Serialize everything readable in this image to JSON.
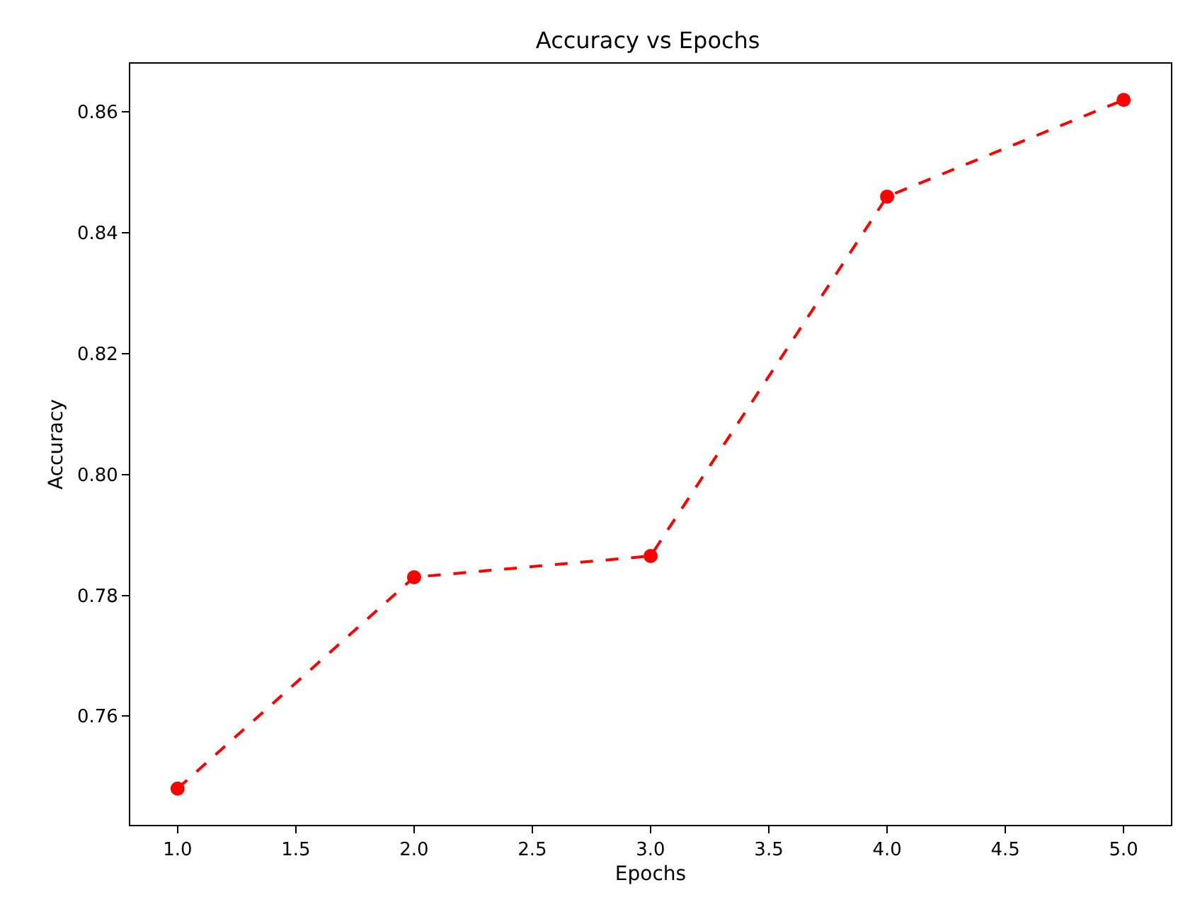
{
  "chart_data": {
    "type": "line",
    "title": "Accuracy vs Epochs",
    "xlabel": "Epochs",
    "ylabel": "Accuracy",
    "x": [
      1,
      2,
      3,
      4,
      5
    ],
    "series": [
      {
        "color": "#ff0000",
        "values": [
          0.748,
          0.783,
          0.7865,
          0.846,
          0.862
        ]
      }
    ],
    "xlim": [
      0.8,
      5.2
    ],
    "xticks": [
      {
        "value": 1,
        "label": "1.0"
      },
      {
        "value": 1.5,
        "label": "1.5"
      },
      {
        "value": 2,
        "label": "2.0"
      },
      {
        "value": 2.5,
        "label": "2.5"
      },
      {
        "value": 3,
        "label": "3.0"
      },
      {
        "value": 3.5,
        "label": "3.5"
      },
      {
        "value": 4,
        "label": "4.0"
      },
      {
        "value": 4.5,
        "label": "4.5"
      },
      {
        "value": 5,
        "label": "5.0"
      }
    ],
    "ylim": [
      0.742,
      0.868
    ],
    "yticks": [
      {
        "value": 0.76,
        "label": "0.76"
      },
      {
        "value": 0.78,
        "label": "0.78"
      },
      {
        "value": 0.8,
        "label": "0.80"
      },
      {
        "value": 0.82,
        "label": "0.82"
      },
      {
        "value": 0.84,
        "label": "0.84"
      },
      {
        "value": 0.86,
        "label": "0.86"
      }
    ],
    "grid": false,
    "legend": false,
    "marker": "circle",
    "line_style": "dashed"
  }
}
